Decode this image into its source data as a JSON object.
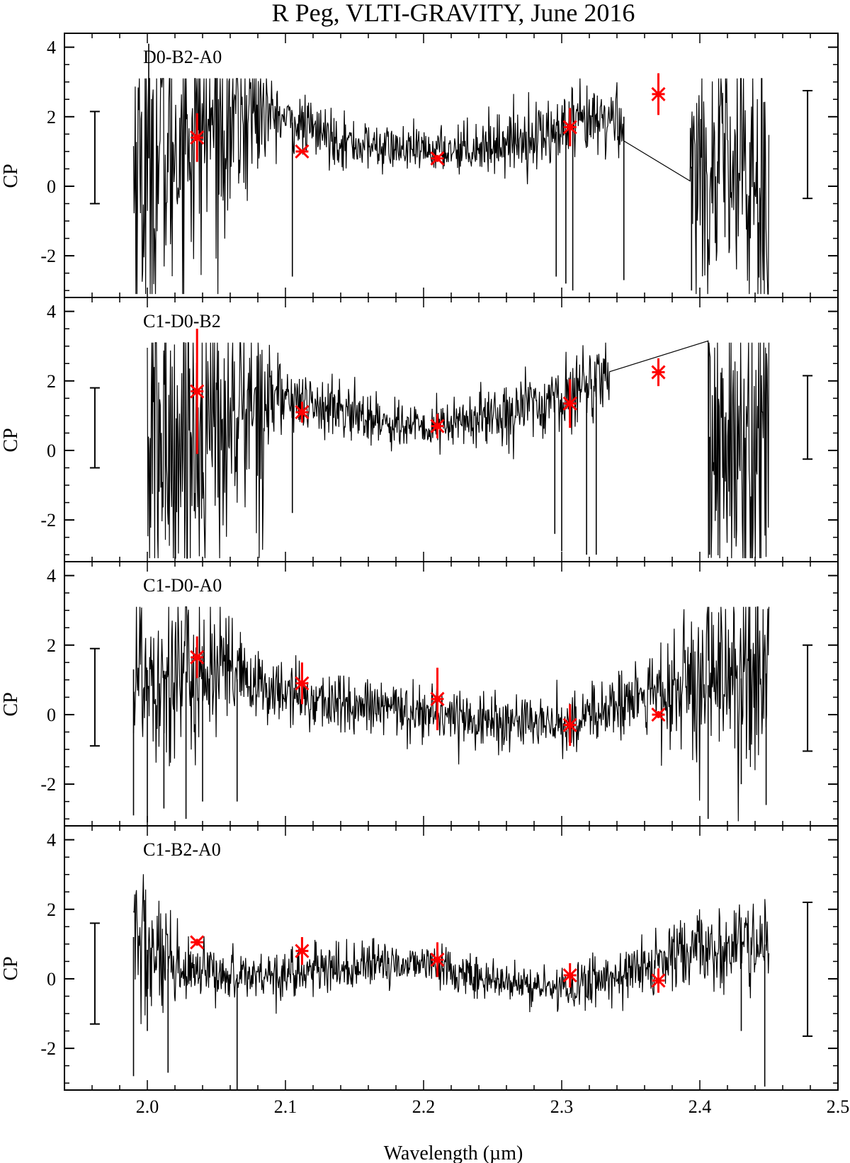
{
  "chart_data": {
    "type": "line",
    "title": "R Peg, VLTI-GRAVITY, June 2016",
    "xlabel": "Wavelength (µm)",
    "xlim": [
      1.94,
      2.5
    ],
    "x_ticks": [
      "2.0",
      "2.1",
      "2.2",
      "2.3",
      "2.4",
      "2.5"
    ],
    "shared_x_axis": true,
    "colors": {
      "spectrum": "#000000",
      "model": "#ff0000"
    },
    "panels": [
      {
        "label": "D0-B2-A0",
        "ylabel": "CP",
        "ylim": [
          -3.2,
          4.4
        ],
        "y_ticks": [
          "4",
          "2",
          "0",
          "-2"
        ],
        "error_bar_left": [
          -0.5,
          2.15
        ],
        "error_bar_right": [
          -0.35,
          2.75
        ],
        "spectrum": {
          "x_range": [
            1.99,
            2.45
          ],
          "noise": [
            [
              1.99,
              3.0
            ],
            [
              2.08,
              1.2
            ],
            [
              2.09,
              0.45
            ],
            [
              2.2,
              0.3
            ],
            [
              2.29,
              0.5
            ],
            [
              2.345,
              0.6
            ],
            [
              2.35,
              0.6
            ],
            [
              2.45,
              2.9
            ]
          ],
          "trend": [
            [
              1.99,
              0.5
            ],
            [
              2.03,
              1.6
            ],
            [
              2.08,
              2.2
            ],
            [
              2.1,
              1.9
            ],
            [
              2.15,
              1.2
            ],
            [
              2.2,
              1.0
            ],
            [
              2.25,
              1.2
            ],
            [
              2.3,
              1.6
            ],
            [
              2.345,
              2.0
            ],
            [
              2.35,
              1.0
            ],
            [
              2.45,
              0.0
            ]
          ],
          "gap": [
            2.345,
            2.393
          ],
          "gap_values": [
            2.1,
            0.15
          ],
          "spikes": [
            [
              2.001,
              4.1
            ],
            [
              2.105,
              -2.6
            ],
            [
              2.296,
              -2.6
            ],
            [
              2.303,
              -2.8
            ],
            [
              2.308,
              -3.0
            ],
            [
              2.345,
              -2.7
            ],
            [
              2.394,
              -3.0
            ]
          ]
        },
        "model": {
          "x": [
            2.036,
            2.112,
            2.21,
            2.306,
            2.37
          ],
          "y": [
            1.4,
            1.0,
            0.8,
            1.7,
            2.65
          ],
          "yerr": [
            0.7,
            0.05,
            0.1,
            0.55,
            0.6
          ]
        }
      },
      {
        "label": "C1-D0-B2",
        "ylabel": "CP",
        "ylim": [
          -3.2,
          4.4
        ],
        "y_ticks": [
          "4",
          "2",
          "0",
          "-2"
        ],
        "error_bar_left": [
          -0.5,
          1.8
        ],
        "error_bar_right": [
          -0.25,
          2.15
        ],
        "spectrum": {
          "x_range": [
            2.0,
            2.45
          ],
          "noise": [
            [
              2.0,
              3.0
            ],
            [
              2.09,
              1.2
            ],
            [
              2.1,
              0.45
            ],
            [
              2.2,
              0.35
            ],
            [
              2.29,
              0.5
            ],
            [
              2.335,
              0.5
            ],
            [
              2.34,
              0.6
            ],
            [
              2.45,
              2.9
            ]
          ],
          "trend": [
            [
              2.0,
              0.0
            ],
            [
              2.05,
              0.6
            ],
            [
              2.09,
              1.6
            ],
            [
              2.12,
              1.3
            ],
            [
              2.2,
              0.6
            ],
            [
              2.25,
              1.0
            ],
            [
              2.3,
              1.5
            ],
            [
              2.335,
              2.3
            ],
            [
              2.34,
              1.0
            ],
            [
              2.45,
              0.0
            ]
          ],
          "gap": [
            2.335,
            2.406
          ],
          "gap_values": [
            2.8,
            3.15
          ],
          "spikes": [
            [
              2.105,
              -1.8
            ],
            [
              2.295,
              -2.4
            ],
            [
              2.3,
              -2.9
            ],
            [
              2.318,
              -3.0
            ],
            [
              2.325,
              -3.0
            ],
            [
              2.407,
              -3.0
            ]
          ]
        },
        "model": {
          "x": [
            2.036,
            2.112,
            2.21,
            2.306,
            2.37
          ],
          "y": [
            1.7,
            1.1,
            0.7,
            1.35,
            2.25
          ],
          "yerr": [
            1.8,
            0.3,
            0.35,
            0.7,
            0.4
          ]
        }
      },
      {
        "label": "C1-D0-A0",
        "ylabel": "CP",
        "ylim": [
          -3.2,
          4.4
        ],
        "y_ticks": [
          "4",
          "2",
          "0",
          "-2"
        ],
        "error_bar_left": [
          -0.9,
          1.9
        ],
        "error_bar_right": [
          -1.05,
          2.0
        ],
        "spectrum": {
          "x_range": [
            1.99,
            2.45
          ],
          "noise": [
            [
              1.99,
              1.6
            ],
            [
              2.06,
              1.0
            ],
            [
              2.08,
              0.45
            ],
            [
              2.3,
              0.4
            ],
            [
              2.35,
              0.5
            ],
            [
              2.45,
              1.8
            ]
          ],
          "trend": [
            [
              1.99,
              1.3
            ],
            [
              2.05,
              1.2
            ],
            [
              2.1,
              0.6
            ],
            [
              2.15,
              0.2
            ],
            [
              2.2,
              0.1
            ],
            [
              2.25,
              -0.2
            ],
            [
              2.3,
              -0.3
            ],
            [
              2.35,
              0.4
            ],
            [
              2.4,
              0.8
            ],
            [
              2.45,
              1.2
            ]
          ],
          "gap": null,
          "gap_values": null,
          "spikes": [
            [
              1.99,
              -2.9
            ],
            [
              2.0,
              -3.1
            ],
            [
              2.012,
              -2.7
            ],
            [
              2.028,
              -3.0
            ],
            [
              2.04,
              -2.5
            ],
            [
              2.065,
              -2.5
            ],
            [
              2.406,
              -3.0
            ],
            [
              2.43,
              -2.0
            ],
            [
              2.448,
              -2.6
            ]
          ]
        },
        "model": {
          "x": [
            2.036,
            2.112,
            2.21,
            2.306,
            2.37
          ],
          "y": [
            1.65,
            0.9,
            0.45,
            -0.3,
            0.0
          ],
          "yerr": [
            0.6,
            0.6,
            0.9,
            0.6,
            0.1
          ]
        }
      },
      {
        "label": "C1-B2-A0",
        "ylabel": "CP",
        "ylim": [
          -3.2,
          4.4
        ],
        "y_ticks": [
          "4",
          "2",
          "0",
          "-2"
        ],
        "error_bar_left": [
          -1.3,
          1.6
        ],
        "error_bar_right": [
          -1.65,
          2.2
        ],
        "spectrum": {
          "x_range": [
            1.99,
            2.45
          ],
          "noise": [
            [
              1.99,
              1.4
            ],
            [
              2.02,
              0.6
            ],
            [
              2.06,
              0.35
            ],
            [
              2.3,
              0.3
            ],
            [
              2.37,
              0.45
            ],
            [
              2.45,
              0.7
            ]
          ],
          "trend": [
            [
              1.99,
              1.2
            ],
            [
              2.02,
              0.1
            ],
            [
              2.1,
              0.15
            ],
            [
              2.2,
              0.5
            ],
            [
              2.25,
              -0.1
            ],
            [
              2.3,
              -0.3
            ],
            [
              2.35,
              0.2
            ],
            [
              2.4,
              0.8
            ],
            [
              2.45,
              1.0
            ]
          ],
          "gap": null,
          "gap_values": null,
          "spikes": [
            [
              1.99,
              -2.8
            ],
            [
              2.0,
              -1.5
            ],
            [
              2.015,
              -2.7
            ],
            [
              2.065,
              -3.2
            ],
            [
              2.447,
              -3.1
            ],
            [
              2.43,
              -1.5
            ]
          ]
        },
        "model": {
          "x": [
            2.036,
            2.112,
            2.21,
            2.306,
            2.37
          ],
          "y": [
            1.05,
            0.8,
            0.55,
            0.1,
            -0.05
          ],
          "yerr": [
            0.1,
            0.4,
            0.5,
            0.35,
            0.35
          ]
        }
      }
    ]
  }
}
